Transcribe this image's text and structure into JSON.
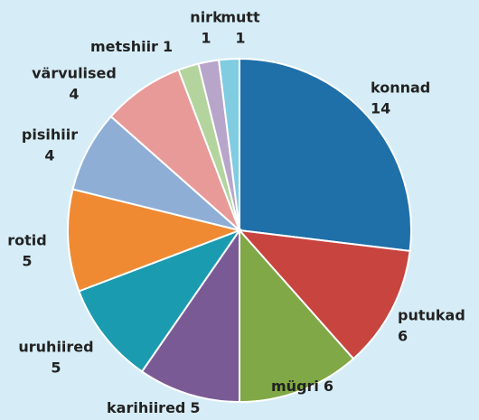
{
  "chart_data": {
    "type": "pie",
    "categories": [
      "konnad",
      "putukad",
      "mügri",
      "karihiired",
      "uruhiired",
      "rotid",
      "pisihiir",
      "värvulised",
      "metshiir",
      "nirk",
      "mutt"
    ],
    "values": [
      14,
      6,
      6,
      5,
      5,
      5,
      4,
      4,
      1,
      1,
      1
    ],
    "colors": [
      "#1f6fa8",
      "#c8443f",
      "#80a846",
      "#7a5a95",
      "#1b9bb0",
      "#ef8a33",
      "#8eaed6",
      "#e89a99",
      "#b3d49d",
      "#b8a5ca",
      "#80cce1"
    ]
  }
}
